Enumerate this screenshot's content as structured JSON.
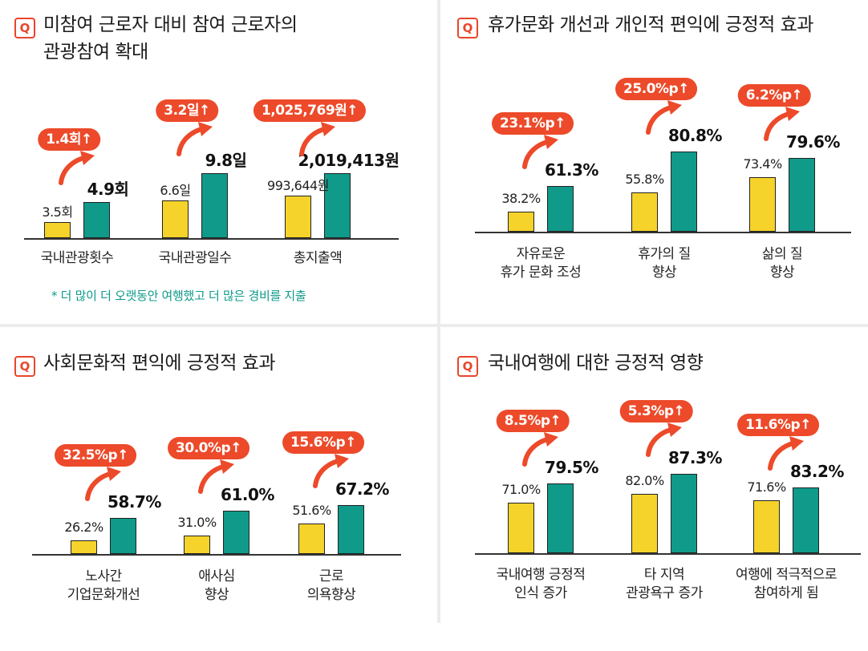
{
  "colors": {
    "before": "#f6d32b",
    "after": "#0f9a8a",
    "accent": "#ec4a2a"
  },
  "q_label": "Q",
  "chart_data": [
    {
      "type": "bar",
      "title_lines": [
        "미참여 근로자 대비 참여 근로자의",
        "관광참여 확대"
      ],
      "category_lines": [
        [
          "국내관광횟수"
        ],
        [
          "국내관광일수"
        ],
        [
          "총지출액"
        ]
      ],
      "series": [
        {
          "values": [
            3.5,
            6.6,
            993644
          ],
          "labels": [
            "3.5회",
            "6.6일",
            "993,644원"
          ]
        },
        {
          "values": [
            4.9,
            9.8,
            2019413
          ],
          "labels": [
            "4.9회",
            "9.8일",
            "2,019,413원"
          ]
        }
      ],
      "increase_labels": [
        "1.4회↑",
        "3.2일↑",
        "1,025,769원↑"
      ],
      "note": "* 더 많이 더 오랫동안 여행했고 더 많은 경비를 지출"
    },
    {
      "type": "bar",
      "title_lines": [
        "휴가문화 개선과 개인적 편익에 긍정적 효과"
      ],
      "category_lines": [
        [
          "자유로운",
          "휴가 문화 조성"
        ],
        [
          "휴가의 질",
          "향상"
        ],
        [
          "삶의 질",
          "향상"
        ]
      ],
      "series": [
        {
          "values": [
            38.2,
            55.8,
            73.4
          ],
          "labels": [
            "38.2%",
            "55.8%",
            "73.4%"
          ]
        },
        {
          "values": [
            61.3,
            80.8,
            79.6
          ],
          "labels": [
            "61.3%",
            "80.8%",
            "79.6%"
          ]
        }
      ],
      "increase_labels": [
        "23.1%p↑",
        "25.0%p↑",
        "6.2%p↑"
      ]
    },
    {
      "type": "bar",
      "title_lines": [
        "사회문화적 편익에 긍정적 효과"
      ],
      "category_lines": [
        [
          "노사간",
          "기업문화개선"
        ],
        [
          "애사심",
          "향상"
        ],
        [
          "근로",
          "의욕향상"
        ]
      ],
      "series": [
        {
          "values": [
            26.2,
            31.0,
            51.6
          ],
          "labels": [
            "26.2%",
            "31.0%",
            "51.6%"
          ]
        },
        {
          "values": [
            58.7,
            61.0,
            67.2
          ],
          "labels": [
            "58.7%",
            "61.0%",
            "67.2%"
          ]
        }
      ],
      "increase_labels": [
        "32.5%p↑",
        "30.0%p↑",
        "15.6%p↑"
      ]
    },
    {
      "type": "bar",
      "title_lines": [
        "국내여행에 대한 긍정적 영향"
      ],
      "category_lines": [
        [
          "국내여행 긍정적",
          "인식 증가"
        ],
        [
          "타 지역",
          "관광욕구 증가"
        ],
        [
          "여행에 적극적으로",
          "참여하게 됨"
        ]
      ],
      "series": [
        {
          "values": [
            71.0,
            82.0,
            71.6
          ],
          "labels": [
            "71.0%",
            "82.0%",
            "71.6%"
          ]
        },
        {
          "values": [
            79.5,
            87.3,
            83.2
          ],
          "labels": [
            "79.5%",
            "87.3%",
            "83.2%"
          ]
        }
      ],
      "increase_labels": [
        "8.5%p↑",
        "5.3%p↑",
        "11.6%p↑"
      ]
    }
  ]
}
